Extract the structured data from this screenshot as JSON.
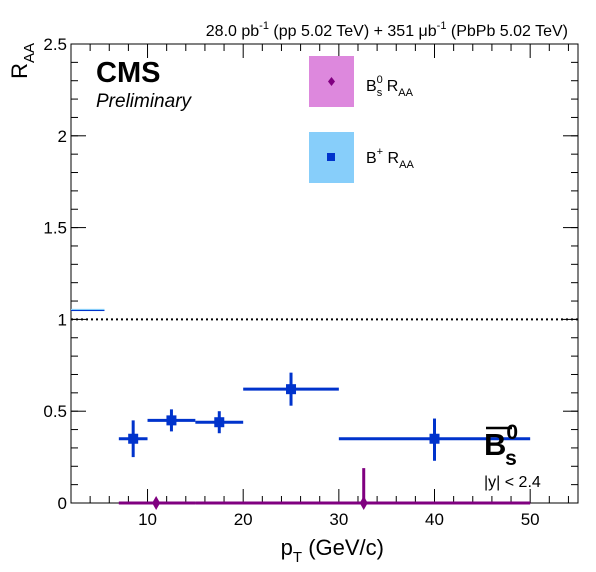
{
  "chart_data": {
    "type": "scatter",
    "lumi_parts": {
      "pp_val": "28.0 pb",
      "pp_exp": "-1",
      "pp_desc": " (pp 5.02 TeV) + 351 μb",
      "pbpb_exp": "-1",
      "pbpb_desc": " (PbPb 5.02 TeV)"
    },
    "cms_label": "CMS",
    "preliminary_label": "Preliminary",
    "xlabel_main": "p",
    "xlabel_sub": "T",
    "xlabel_unit": " (GeV/c)",
    "ylabel_main": "R",
    "ylabel_sub": "AA",
    "xlim": [
      2,
      55
    ],
    "ylim": [
      0,
      2.5
    ],
    "x_ticks": [
      10,
      20,
      30,
      40,
      50
    ],
    "x_tick_labels": [
      "10",
      "20",
      "30",
      "40",
      "50"
    ],
    "y_ticks": [
      0,
      0.5,
      1,
      1.5,
      2,
      2.5
    ],
    "y_tick_labels": [
      "0",
      "0.5",
      "1",
      "1.5",
      "2",
      "2.5"
    ],
    "reference_line": 1,
    "particle_label": {
      "main": "B",
      "sub": "s",
      "sup": "0"
    },
    "rapidity_label": "|y| < 2.4",
    "legend": [
      {
        "key": "bs",
        "main": "B",
        "sub": "s",
        "sup": "0",
        "suffix_main": " R",
        "suffix_sub": "AA"
      },
      {
        "key": "bplus",
        "main": "B",
        "sup": "+",
        "suffix_main": " R",
        "suffix_sub": "AA"
      }
    ],
    "series": [
      {
        "key": "bplus",
        "color": "#0033cc",
        "box_color": "#87cefa",
        "marker": "square",
        "points": [
          {
            "x": 8.5,
            "xlo": 7,
            "xhi": 10,
            "y": 0.35,
            "ylo": 0.25,
            "yhi": 0.45
          },
          {
            "x": 12.5,
            "xlo": 10,
            "xhi": 15,
            "y": 0.45,
            "ylo": 0.39,
            "yhi": 0.51
          },
          {
            "x": 17.5,
            "xlo": 15,
            "xhi": 20,
            "y": 0.44,
            "ylo": 0.38,
            "yhi": 0.5
          },
          {
            "x": 25,
            "xlo": 20,
            "xhi": 30,
            "y": 0.62,
            "ylo": 0.53,
            "yhi": 0.71
          },
          {
            "x": 40,
            "xlo": 30,
            "xhi": 50,
            "y": 0.35,
            "ylo": 0.23,
            "yhi": 0.46
          }
        ],
        "global_box": {
          "x0": 2,
          "x1": 5.5,
          "ylo": 1.045,
          "yhi": 1.052
        }
      },
      {
        "key": "bs",
        "color": "#800080",
        "box_color": "#dd88dd",
        "marker": "diamond",
        "points": [
          {
            "x": 10.9,
            "xlo": 7,
            "xhi": 15,
            "y": 0,
            "ylo": 0,
            "yhi": 0
          },
          {
            "x": 32.6,
            "xlo": 15,
            "xhi": 50,
            "y": 0,
            "ylo": 0,
            "yhi": 0.19
          }
        ]
      }
    ],
    "colors": {
      "reference_line": "#000000",
      "axis": "#000000"
    }
  }
}
